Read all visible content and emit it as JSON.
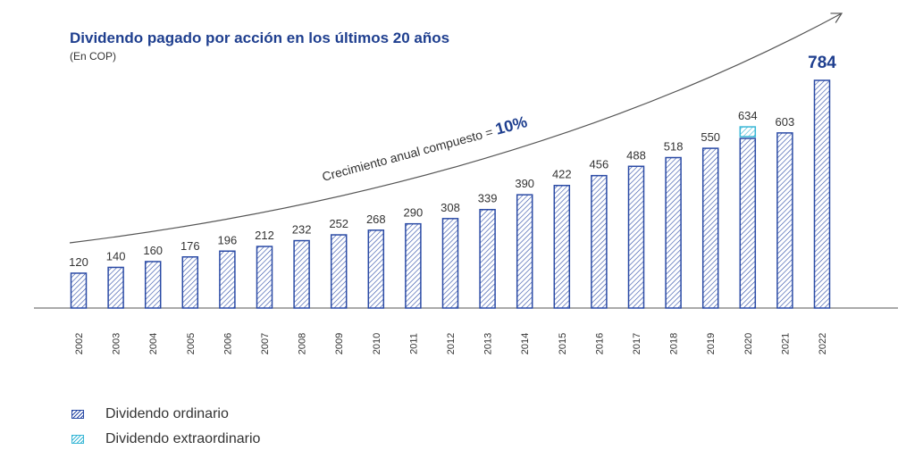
{
  "chart_data": {
    "type": "bar",
    "title": "Dividendo pagado por acción en los últimos 20 años",
    "subtitle": "(En COP)",
    "annotation": {
      "text": "Crecimiento anual compuesto = ",
      "value": "10%"
    },
    "categories": [
      "2002",
      "2003",
      "2004",
      "2005",
      "2006",
      "2007",
      "2008",
      "2009",
      "2010",
      "2011",
      "2012",
      "2013",
      "2014",
      "2015",
      "2016",
      "2017",
      "2018",
      "2019",
      "2020",
      "2021",
      "2022"
    ],
    "series": [
      {
        "name": "Dividendo ordinario",
        "color": "#2a4aa5",
        "values": [
          120,
          140,
          160,
          176,
          196,
          212,
          232,
          252,
          268,
          290,
          308,
          339,
          390,
          422,
          456,
          488,
          518,
          550,
          584,
          603,
          784
        ]
      },
      {
        "name": "Dividendo extraordinario",
        "color": "#39b7d6",
        "values": [
          0,
          0,
          0,
          0,
          0,
          0,
          0,
          0,
          0,
          0,
          0,
          0,
          0,
          0,
          0,
          0,
          0,
          0,
          50,
          0,
          0
        ]
      }
    ],
    "data_labels": [
      "120",
      "140",
      "160",
      "176",
      "196",
      "212",
      "232",
      "252",
      "268",
      "290",
      "308",
      "339",
      "390",
      "422",
      "456",
      "488",
      "518",
      "550",
      "634",
      "603",
      "784"
    ],
    "stacked": true,
    "ylim": [
      0,
      800
    ],
    "grid": false,
    "legend_position": "bottom-left"
  }
}
